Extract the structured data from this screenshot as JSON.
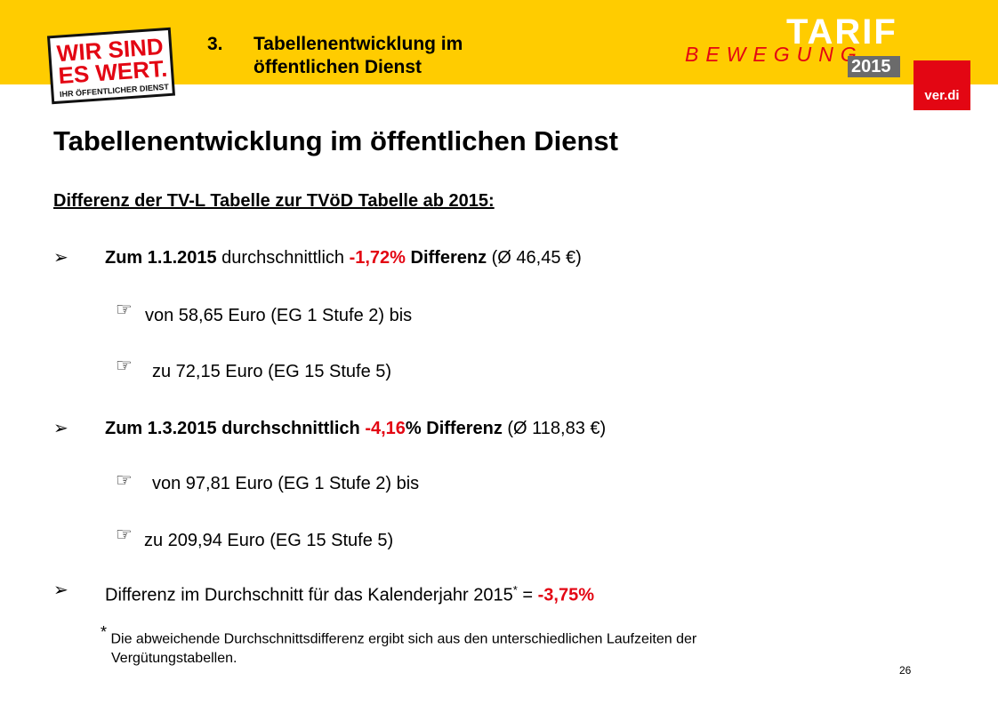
{
  "header": {
    "section_number": "3.",
    "section_title_line1": "Tabellenentwicklung im",
    "section_title_line2": "öffentlichen Dienst",
    "logo_line1": "WIR SIND",
    "logo_line2": "ES WERT.",
    "logo_line3": "IHR ÖFFENTLICHER DIENST",
    "tarif": "TARIF",
    "bewegung": "BEWEGUNG",
    "year": "2015",
    "verdi": "ver.di"
  },
  "title": "Tabellenentwicklung im öffentlichen Dienst",
  "subtitle": "Differenz der TV-L Tabelle zur TVöD Tabelle ab 2015:",
  "bullets": [
    {
      "p1": "Zum 1.1.2015",
      "p2": " durchschnittlich ",
      "p3": "-1,72%",
      "p4": " Differenz",
      "p5": " (Ø 46,45 €)"
    },
    {
      "p1": "Zum 1.3.2015 durchschnittlich ",
      "p2": "-4,16",
      "p3": "% Differenz",
      "p4": " (Ø 118,83 €)"
    },
    {
      "p1": "Differenz im Durchschnitt für das Kalenderjahr 2015",
      "sup": "*",
      "p2": " = ",
      "p3": "-3,75%"
    }
  ],
  "subitems": [
    "von 58,65 Euro (EG 1 Stufe 2) bis",
    "zu  72,15 Euro (EG 15 Stufe 5)",
    "von 97,81 Euro (EG 1 Stufe 2) bis",
    "zu  209,94 Euro (EG 15 Stufe 5)"
  ],
  "footnote": {
    "mark": "*",
    "line1": " Die abweichende Durchschnittsdifferenz ergibt sich aus den unterschiedlichen Laufzeiten der",
    "line2": "Vergütungstabellen."
  },
  "page_number": "26",
  "colors": {
    "banner": "#FFCC00",
    "accent_red": "#E30613"
  },
  "icons": {
    "bullet": "arrow-bullet-icon",
    "subbullet": "pointing-hand-icon"
  }
}
